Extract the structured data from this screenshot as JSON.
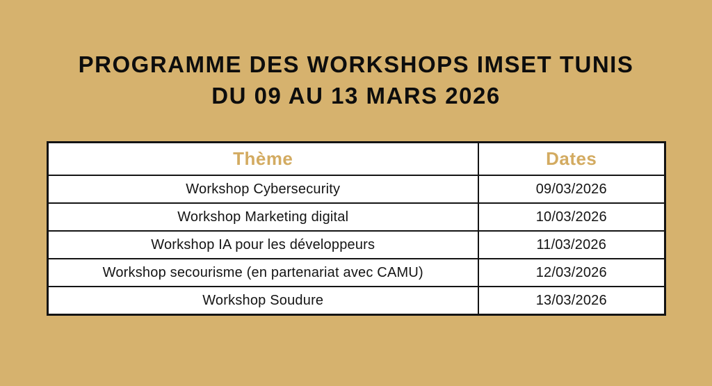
{
  "title": {
    "line1": "PROGRAMME DES WORKSHOPS IMSET TUNIS",
    "line2": "DU 09 AU 13 MARS 2026"
  },
  "colors": {
    "background": "#d6b26e",
    "accent_gold": "#d3ab61",
    "text_black": "#141414",
    "cell_white": "#ffffff"
  },
  "table": {
    "headers": [
      "Thème",
      "Dates"
    ],
    "rows": [
      {
        "theme": "Workshop Cybersecurity",
        "date": "09/03/2026"
      },
      {
        "theme": "Workshop Marketing digital",
        "date": "10/03/2026"
      },
      {
        "theme": "Workshop IA pour les développeurs",
        "date": "11/03/2026"
      },
      {
        "theme": "Workshop secourisme (en partenariat avec CAMU)",
        "date": "12/03/2026"
      },
      {
        "theme": "Workshop Soudure",
        "date": "13/03/2026"
      }
    ]
  }
}
